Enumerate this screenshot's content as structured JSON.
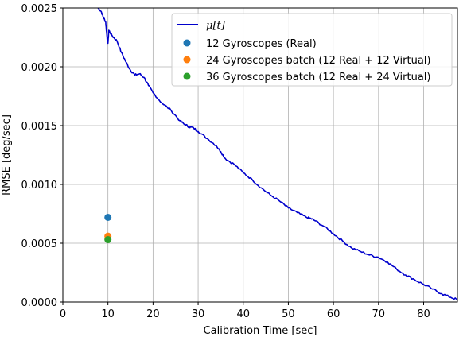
{
  "chart_data": {
    "type": "line",
    "xlabel": "Calibration Time [sec]",
    "ylabel": "RMSE [deg/sec]",
    "xlim": [
      0,
      87.5
    ],
    "ylim": [
      0,
      0.0025
    ],
    "x_ticks": [
      0,
      10,
      20,
      30,
      40,
      50,
      60,
      70,
      80
    ],
    "x_tick_labels": [
      "0",
      "10",
      "20",
      "30",
      "40",
      "50",
      "60",
      "70",
      "80"
    ],
    "y_ticks": [
      0,
      0.0005,
      0.001,
      0.0015,
      0.002,
      0.0025
    ],
    "y_tick_labels": [
      "0.0000",
      "0.0005",
      "0.0010",
      "0.0015",
      "0.0020",
      "0.0025"
    ],
    "grid": true,
    "legend_position": "top-right",
    "line_series": {
      "name": "μ[t]",
      "color": "#0000cc",
      "x": [
        7.8,
        8.5,
        9.0,
        9.5,
        9.8,
        10.0,
        10.2,
        11,
        12,
        13,
        14,
        15,
        16,
        17,
        18,
        19,
        20,
        22,
        24,
        26,
        27,
        28,
        29,
        30,
        32,
        34,
        35,
        36,
        38,
        40,
        42,
        44,
        46,
        48,
        50,
        52,
        54,
        55,
        56,
        58,
        60,
        62,
        64,
        66,
        68,
        70,
        72,
        74,
        76,
        78,
        80,
        82,
        84,
        86,
        87.5
      ],
      "y": [
        0.0025,
        0.00247,
        0.00242,
        0.00238,
        0.00225,
        0.0022,
        0.00231,
        0.00226,
        0.00222,
        0.00212,
        0.00204,
        0.00197,
        0.00193,
        0.00194,
        0.00191,
        0.00184,
        0.00178,
        0.00169,
        0.00163,
        0.00154,
        0.00151,
        0.00149,
        0.00148,
        0.00145,
        0.00139,
        0.00133,
        0.00128,
        0.00122,
        0.00117,
        0.0011,
        0.00104,
        0.00097,
        0.00091,
        0.00086,
        0.0008,
        0.00076,
        0.00072,
        0.00071,
        0.00069,
        0.00064,
        0.00058,
        0.00052,
        0.00046,
        0.00043,
        0.0004,
        0.00038,
        0.00034,
        0.00028,
        0.00023,
        0.00019,
        0.00015,
        0.00011,
        7e-05,
        4e-05,
        2e-05
      ]
    },
    "scatter_series": [
      {
        "name": "12 Gyroscopes (Real)",
        "color": "#1f77b4",
        "x": [
          10
        ],
        "y": [
          0.00072
        ]
      },
      {
        "name": "24 Gyroscopes batch (12 Real + 12 Virtual)",
        "color": "#ff7f0e",
        "x": [
          10
        ],
        "y": [
          0.00056
        ]
      },
      {
        "name": "36 Gyroscopes batch (12 Real + 24 Virtual)",
        "color": "#2ca02c",
        "x": [
          10
        ],
        "y": [
          0.00053
        ]
      }
    ]
  }
}
